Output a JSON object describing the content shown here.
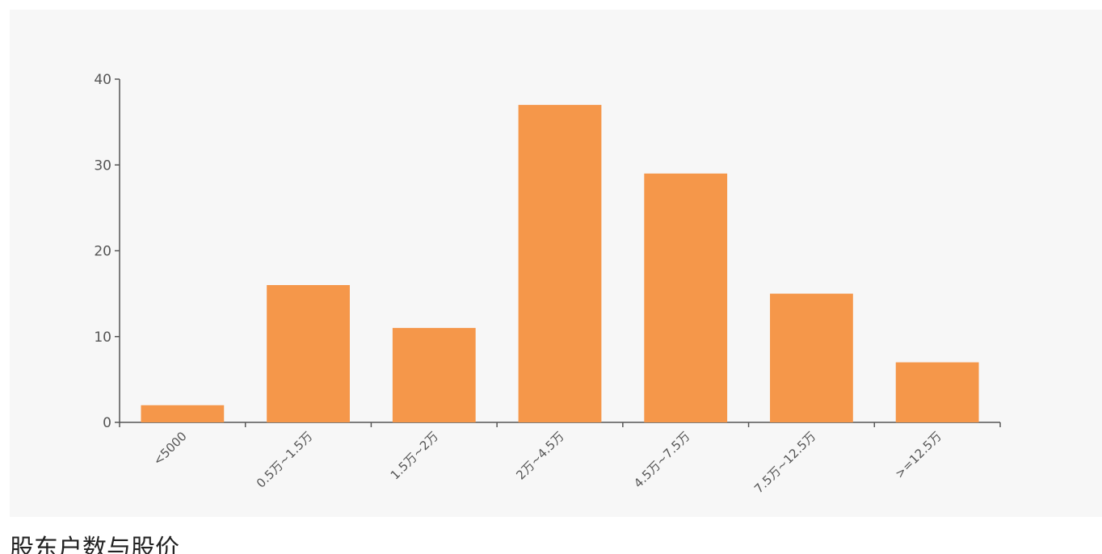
{
  "chart_data": {
    "type": "bar",
    "categories": [
      "<5000",
      "0.5万~1.5万",
      "1.5万~2万",
      "2万~4.5万",
      "4.5万~7.5万",
      "7.5万~12.5万",
      ">=12.5万"
    ],
    "values": [
      2,
      16,
      11,
      37,
      29,
      15,
      7
    ],
    "ylim": [
      0,
      40
    ],
    "yticks": [
      0,
      10,
      20,
      30,
      40
    ],
    "bar_color": "#f5974a",
    "axis_color": "#555555",
    "grid": false,
    "legend": false
  },
  "section": {
    "heading": "股东户数与股价"
  }
}
